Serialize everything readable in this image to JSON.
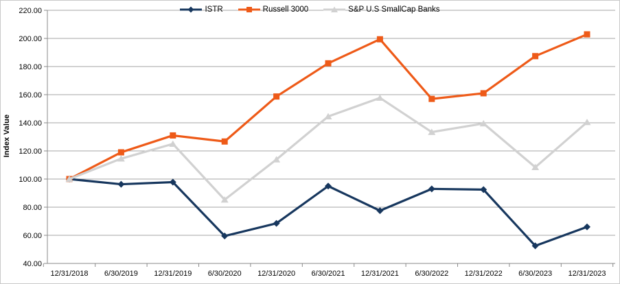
{
  "chart_data": {
    "type": "line",
    "title": "",
    "xlabel": "",
    "ylabel": "Index Value",
    "ylim": [
      40,
      220
    ],
    "ytick_step": 20,
    "y_tick_labels": [
      "40.00",
      "60.00",
      "80.00",
      "100.00",
      "120.00",
      "140.00",
      "160.00",
      "180.00",
      "200.00",
      "220.00"
    ],
    "grid": true,
    "legend_position": "top-center",
    "categories": [
      "12/31/2018",
      "6/30/2019",
      "12/31/2019",
      "6/30/2020",
      "12/31/2020",
      "6/30/2021",
      "12/31/2021",
      "6/30/2022",
      "12/31/2022",
      "6/30/2023",
      "12/31/2023"
    ],
    "series": [
      {
        "name": "ISTR",
        "color": "#17375E",
        "marker": "diamond",
        "values": [
          100.0,
          96.3,
          97.8,
          59.5,
          68.5,
          95.0,
          77.5,
          93.0,
          92.5,
          52.5,
          66.0
        ]
      },
      {
        "name": "Russell 3000",
        "color": "#EE5A18",
        "marker": "square",
        "values": [
          100.0,
          119.0,
          131.0,
          126.7,
          158.7,
          182.3,
          199.4,
          157.0,
          161.0,
          187.4,
          202.9
        ]
      },
      {
        "name": "S&P U.S SmallCap Banks",
        "color": "#D1D1D1",
        "marker": "triangle",
        "values": [
          100.0,
          114.5,
          125.0,
          85.3,
          113.9,
          144.5,
          157.7,
          133.4,
          139.5,
          108.4,
          140.4
        ]
      }
    ],
    "colors": {
      "background": "#FFFFFF",
      "gridline": "#A6A6A6",
      "axis": "#898989",
      "frame_border": "#C9C9C9",
      "text": "#000000"
    }
  }
}
